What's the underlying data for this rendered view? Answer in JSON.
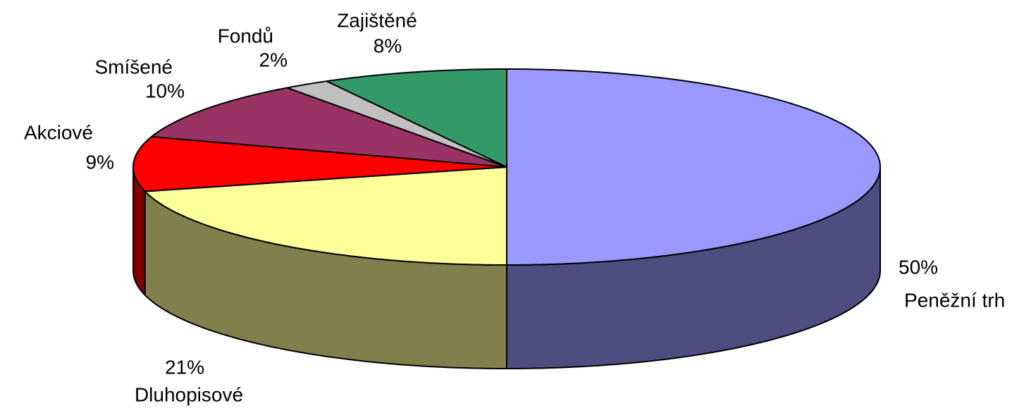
{
  "chart_data": {
    "type": "pie3d",
    "categories": [
      "Peněžní trh",
      "Dluhopisové",
      "Akciové",
      "Smíšené",
      "Fondů",
      "Zajištěné"
    ],
    "values": [
      50,
      21,
      9,
      10,
      2,
      8
    ],
    "value_labels": [
      "50%",
      "21%",
      "9%",
      "10%",
      "2%",
      "8%"
    ],
    "colors": [
      "#9999ff",
      "#ffff99",
      "#ff0000",
      "#993366",
      "#c0c0c0",
      "#339966"
    ]
  }
}
